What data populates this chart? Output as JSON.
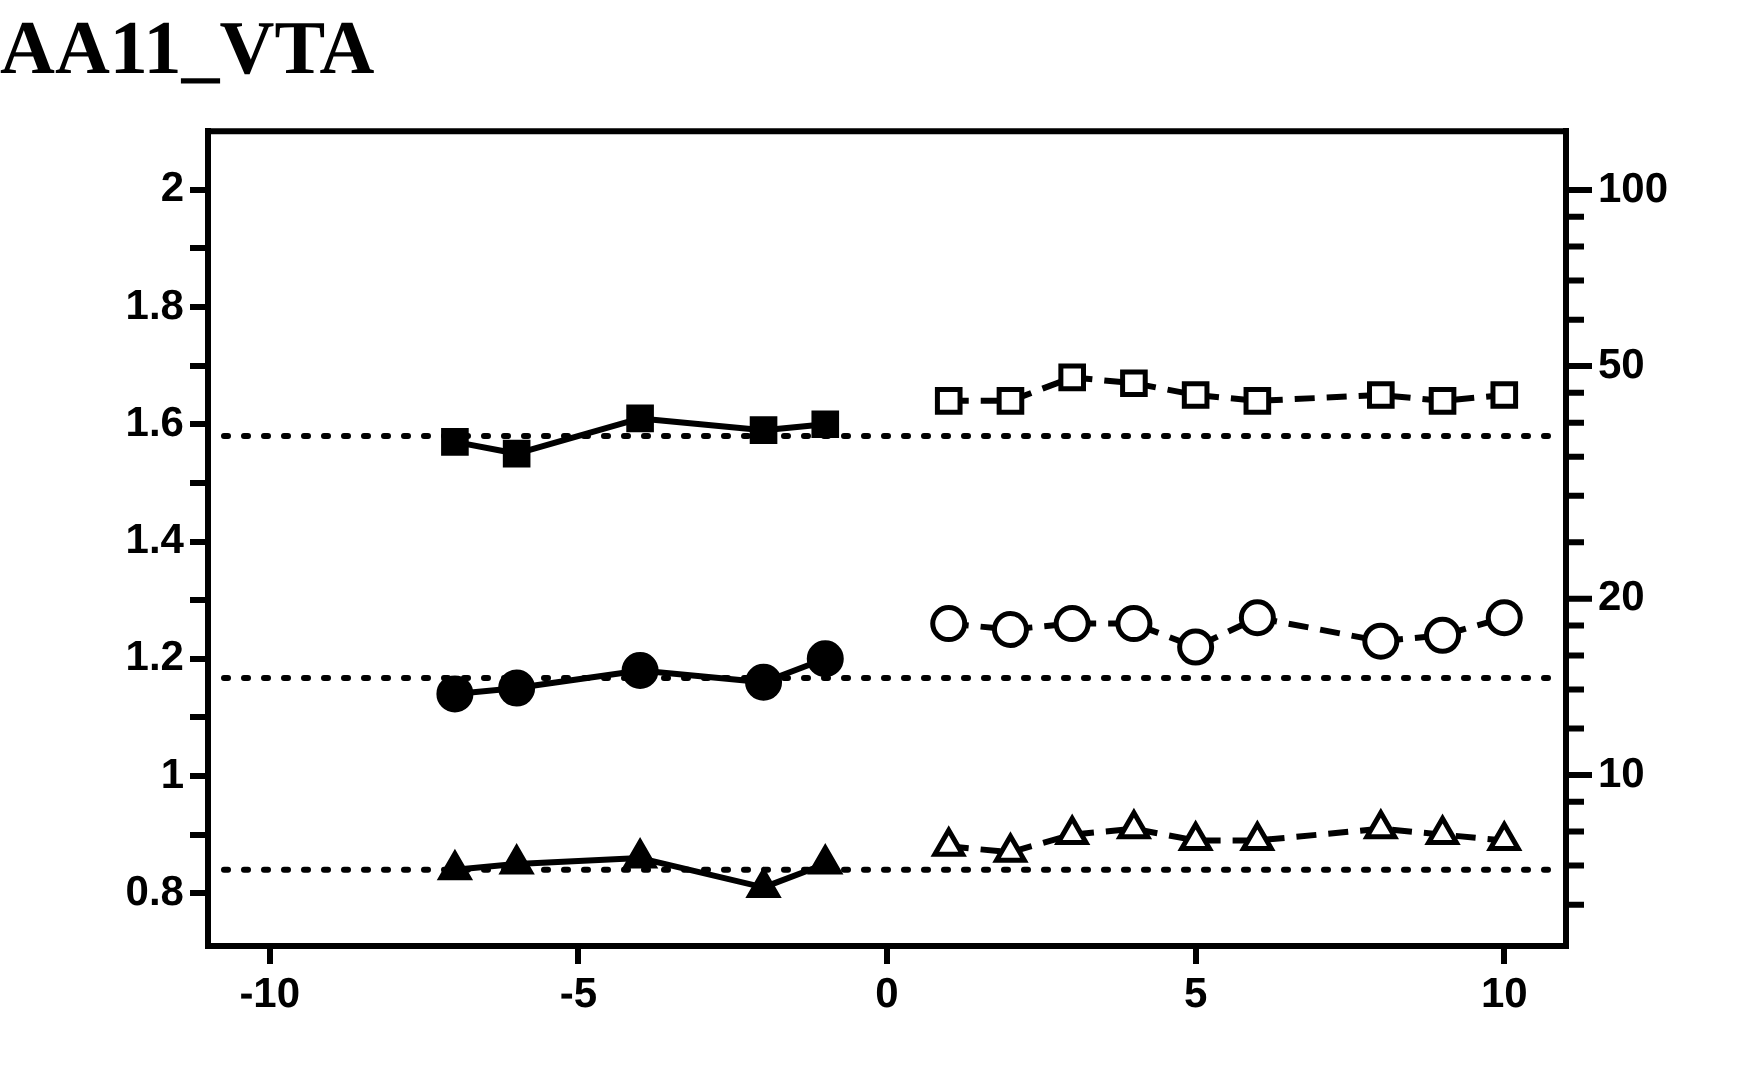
{
  "chart_data": {
    "type": "line",
    "title": "AA11_VTA",
    "xlim": [
      -11,
      11
    ],
    "xticks": [
      -10,
      -5,
      0,
      5,
      10
    ],
    "ylim": [
      0.71,
      2.1
    ],
    "yticks": [
      0.8,
      {
        "value": 0.9,
        "label": null
      },
      1,
      {
        "value": 1.1,
        "label": null
      },
      1.2,
      {
        "value": 1.3,
        "label": null
      },
      1.4,
      {
        "value": 1.5,
        "label": null
      },
      1.6,
      {
        "value": 1.7,
        "label": null
      },
      1.8,
      {
        "value": 1.9,
        "label": null
      },
      2
    ],
    "y2lim": [
      5.1,
      126
    ],
    "y2ticks": [
      {
        "value": 6,
        "label": null
      },
      {
        "value": 7,
        "label": null
      },
      {
        "value": 8,
        "label": null
      },
      {
        "value": 9,
        "label": null
      },
      10,
      {
        "value": 12,
        "label": null
      },
      {
        "value": 14,
        "label": null
      },
      {
        "value": 16,
        "label": null
      },
      {
        "value": 18,
        "label": null
      },
      20,
      {
        "value": 25,
        "label": null
      },
      {
        "value": 30,
        "label": null
      },
      {
        "value": 35,
        "label": null
      },
      {
        "value": 40,
        "label": null
      },
      {
        "value": 45,
        "label": null
      },
      50,
      {
        "value": 60,
        "label": null
      },
      {
        "value": 70,
        "label": null
      },
      {
        "value": 80,
        "label": null
      },
      {
        "value": 90,
        "label": null
      },
      100
    ],
    "grid": false,
    "legend": false,
    "log": "y2",
    "ref_lines": [
      {
        "axis": "y",
        "value": 1.58,
        "line_style": "dotted",
        "color": "#000000"
      },
      {
        "axis": "y",
        "value": 1.167,
        "line_style": "dotted",
        "color": "#000000"
      },
      {
        "axis": "y",
        "value": 0.84,
        "line_style": "dotted",
        "color": "#000000"
      }
    ],
    "series": [
      {
        "color": "#000000",
        "marker": "square",
        "line_style": "solid",
        "x": [
          -7,
          -6,
          -4,
          -2,
          -1
        ],
        "values": [
          1.57,
          1.55,
          1.61,
          1.59,
          1.6
        ]
      },
      {
        "color": "#000000",
        "marker": "circle",
        "line_style": "solid",
        "x": [
          -7,
          -6,
          -4,
          -2,
          -1
        ],
        "values": [
          1.14,
          1.15,
          1.18,
          1.16,
          1.2
        ]
      },
      {
        "color": "#000000",
        "marker": "triangle",
        "line_style": "solid",
        "x": [
          -7,
          -6,
          -4,
          -2,
          -1
        ],
        "values": [
          0.84,
          0.85,
          0.86,
          0.81,
          0.85
        ]
      },
      {
        "color": "#000000",
        "marker": "square",
        "line_style": "dashed",
        "x": [
          1,
          2,
          3,
          4,
          5,
          6,
          8,
          9,
          10
        ],
        "values": [
          1.64,
          1.64,
          1.68,
          1.67,
          1.65,
          1.64,
          1.65,
          1.64,
          1.65
        ]
      },
      {
        "color": "#000000",
        "marker": "circle",
        "line_style": "dashed",
        "x": [
          1,
          2,
          3,
          4,
          5,
          6,
          8,
          9,
          10
        ],
        "values": [
          1.26,
          1.25,
          1.26,
          1.26,
          1.22,
          1.27,
          1.23,
          1.24,
          1.27
        ]
      },
      {
        "color": "#000000",
        "marker": "triangle",
        "line_style": "dashed",
        "x": [
          1,
          2,
          3,
          4,
          5,
          6,
          8,
          9,
          10
        ],
        "values": [
          0.88,
          0.87,
          0.9,
          0.91,
          0.89,
          0.89,
          0.91,
          0.9,
          0.89
        ]
      }
    ]
  }
}
